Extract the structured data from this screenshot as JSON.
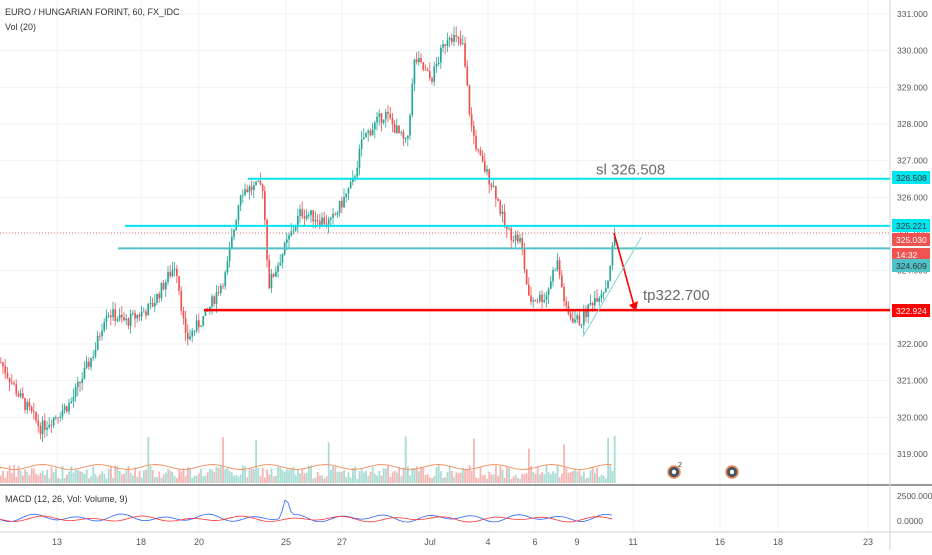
{
  "header": {
    "symbol_line": "EURO / HUNGARIAN FORINT, 60, FX_IDC",
    "volume_label": "Vol (20)"
  },
  "macd": {
    "label": "MACD (12, 26, Vol: Volume, 9)",
    "ticks": [
      "2500.0000",
      "0.0000"
    ]
  },
  "colors": {
    "up": "#26a69a",
    "down": "#ef5350",
    "cyan": "#00e5ee",
    "teal": "#4fc3c7",
    "red": "#ff0000",
    "grid": "#eef1f5",
    "macd": "#2962ff",
    "signal": "#ff3333"
  },
  "chart_data": {
    "type": "candlestick",
    "ylim": [
      318.4,
      331.2
    ],
    "y_ticks": [
      "331.000",
      "330.000",
      "329.000",
      "328.000",
      "327.000",
      "326.000",
      "325.000",
      "324.000",
      "323.000",
      "322.000",
      "321.000",
      "320.000",
      "319.000"
    ],
    "x_ticks": [
      "13",
      "18",
      "20",
      "25",
      "27",
      "Jul",
      "4",
      "6",
      "9",
      "11",
      "16",
      "18",
      "23"
    ],
    "series_close_trace": [
      {
        "x": "13",
        "y": 321.5
      },
      {
        "x": "13",
        "y": 320.1
      },
      {
        "x": "13",
        "y": 319.5
      },
      {
        "x": "18",
        "y": 320.3
      },
      {
        "x": "18",
        "y": 321.2
      },
      {
        "x": "18",
        "y": 322.8
      },
      {
        "x": "18",
        "y": 322.5
      },
      {
        "x": "18",
        "y": 323.5
      },
      {
        "x": "18",
        "y": 324.4
      },
      {
        "x": "20",
        "y": 322.1
      },
      {
        "x": "20",
        "y": 323.4
      },
      {
        "x": "20",
        "y": 324.2
      },
      {
        "x": "25",
        "y": 326.4
      },
      {
        "x": "25",
        "y": 324.1
      },
      {
        "x": "25",
        "y": 324.6
      },
      {
        "x": "25",
        "y": 325.8
      },
      {
        "x": "27",
        "y": 326.0
      },
      {
        "x": "27",
        "y": 327.0
      },
      {
        "x": "27",
        "y": 328.0
      },
      {
        "x": "27",
        "y": 327.5
      },
      {
        "x": "27",
        "y": 328.8
      },
      {
        "x": "Jul",
        "y": 329.8
      },
      {
        "x": "Jul",
        "y": 330.3
      },
      {
        "x": "Jul",
        "y": 329.7
      },
      {
        "x": "4",
        "y": 327.2
      },
      {
        "x": "4",
        "y": 326.2
      },
      {
        "x": "4",
        "y": 325.2
      },
      {
        "x": "6",
        "y": 324.4
      },
      {
        "x": "6",
        "y": 323.4
      },
      {
        "x": "6",
        "y": 323.8
      },
      {
        "x": "9",
        "y": 322.8
      },
      {
        "x": "9",
        "y": 323.7
      },
      {
        "x": "9",
        "y": 325.1
      }
    ],
    "price_labels": [
      {
        "text": "326.508",
        "value": 326.508
      },
      {
        "text": "325.221",
        "value": 325.221
      },
      {
        "text": "325.030",
        "value": 325.03
      },
      {
        "text": "14:32",
        "value": 324.8
      },
      {
        "text": "324.609",
        "value": 324.609
      },
      {
        "text": "322.924",
        "value": 322.924
      }
    ],
    "annotations": [
      {
        "text": "sl 326.508",
        "value": 326.508
      },
      {
        "text": "tp322.700",
        "value": 322.924
      }
    ],
    "hlines": [
      {
        "value": 326.508,
        "color": "cyan"
      },
      {
        "value": 325.221,
        "color": "cyan"
      },
      {
        "value": 324.609,
        "color": "teal"
      },
      {
        "value": 322.924,
        "color": "red"
      }
    ],
    "last_price": 325.03,
    "events_count_label": "2"
  }
}
